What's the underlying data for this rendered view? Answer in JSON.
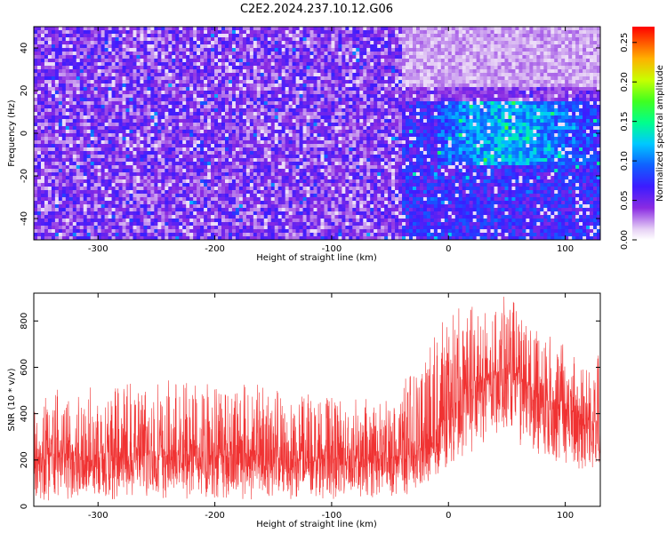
{
  "title": "C2E2.2024.237.10.12.G06",
  "chart_data": [
    {
      "type": "heatmap",
      "xlabel": "Height of straight line (km)",
      "ylabel": "Frequency (Hz)",
      "xlim": [
        -355,
        130
      ],
      "ylim": [
        -50,
        50
      ],
      "xticks": [
        -300,
        -200,
        -100,
        0,
        100
      ],
      "yticks": [
        -40,
        -20,
        0,
        20,
        40
      ],
      "colorbar": {
        "label": "Normalized spectral amplitude",
        "range": [
          0,
          0.27
        ],
        "ticks": [
          "0.00",
          "0.05",
          "0.10",
          "0.15",
          "0.20",
          "0.25"
        ]
      },
      "description_values": {
        "background_level_below_-40km": 0.03,
        "background_level_above_-40km": 0.06,
        "peak_level_near_0Hz_0_to_100km": 0.18,
        "low_level_region_above_20Hz_beyond_-40km": 0.0
      }
    },
    {
      "type": "line",
      "xlabel": "Height of straight line (km)",
      "ylabel": "SNR (10 * v/v)",
      "xlim": [
        -355,
        130
      ],
      "ylim": [
        0,
        920
      ],
      "xticks": [
        -300,
        -200,
        -100,
        0,
        100
      ],
      "yticks": [
        0,
        200,
        400,
        600,
        800
      ],
      "series": [
        {
          "color": "#f03232",
          "envelope": {
            "x": [
              -355,
              -300,
              -200,
              -100,
              -50,
              -25,
              0,
              20,
              40,
              60,
              80,
              100,
              130
            ],
            "mean": [
              210,
              215,
              220,
              205,
              210,
              240,
              400,
              520,
              580,
              560,
              470,
              420,
              350
            ],
            "low": [
              20,
              30,
              30,
              30,
              40,
              60,
              140,
              230,
              300,
              260,
              200,
              150,
              100
            ],
            "high": [
              500,
              520,
              560,
              470,
              460,
              640,
              840,
              880,
              920,
              880,
              760,
              700,
              650
            ]
          }
        }
      ]
    }
  ]
}
